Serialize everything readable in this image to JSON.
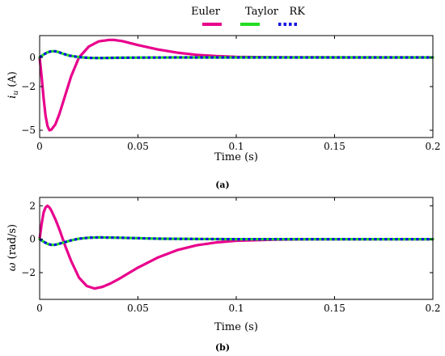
{
  "chart_data": [
    {
      "type": "line",
      "panel": "(a)",
      "xlabel": "Time (s)",
      "ylabel": "i_u (A)",
      "ylabel_main": "i",
      "ylabel_sub": "u",
      "ylabel_unit": " (A)",
      "xlim": [
        0,
        0.2
      ],
      "ylim": [
        -5.5,
        1.5
      ],
      "xticks": [
        0,
        0.05,
        0.1,
        0.15,
        0.2
      ],
      "xtick_labels": [
        "0",
        "0.05",
        "0.1",
        "0.15",
        "0.2"
      ],
      "yticks": [
        0,
        -2,
        -5
      ],
      "ytick_labels": [
        "0",
        "−2",
        "−5"
      ],
      "series": [
        {
          "name": "Euler",
          "color": "#e8008c",
          "style": "solid",
          "x": [
            0,
            0.001,
            0.002,
            0.003,
            0.004,
            0.005,
            0.006,
            0.008,
            0.01,
            0.013,
            0.016,
            0.02,
            0.025,
            0.03,
            0.035,
            0.038,
            0.042,
            0.05,
            0.06,
            0.07,
            0.08,
            0.09,
            0.1,
            0.12,
            0.15,
            0.2
          ],
          "y": [
            0,
            -1.3,
            -2.8,
            -4.0,
            -4.7,
            -5.0,
            -4.95,
            -4.6,
            -3.9,
            -2.6,
            -1.3,
            0.0,
            0.75,
            1.1,
            1.2,
            1.2,
            1.12,
            0.85,
            0.55,
            0.33,
            0.18,
            0.09,
            0.04,
            0.01,
            0.0,
            0.0
          ]
        },
        {
          "name": "Taylor",
          "color": "#22dd22",
          "style": "solid",
          "x": [
            0,
            0.002,
            0.004,
            0.006,
            0.008,
            0.01,
            0.012,
            0.015,
            0.02,
            0.025,
            0.03,
            0.04,
            0.05,
            0.07,
            0.1,
            0.15,
            0.2
          ],
          "y": [
            0,
            0.2,
            0.35,
            0.43,
            0.42,
            0.35,
            0.25,
            0.13,
            0.02,
            -0.03,
            -0.04,
            -0.02,
            -0.01,
            0.0,
            0.0,
            0.0,
            0.0
          ]
        },
        {
          "name": "RK",
          "color": "#1414e0",
          "style": "dotted",
          "x": [
            0,
            0.002,
            0.004,
            0.006,
            0.008,
            0.01,
            0.012,
            0.015,
            0.02,
            0.025,
            0.03,
            0.04,
            0.05,
            0.07,
            0.1,
            0.15,
            0.2
          ],
          "y": [
            0,
            0.2,
            0.35,
            0.43,
            0.42,
            0.35,
            0.25,
            0.13,
            0.02,
            -0.03,
            -0.04,
            -0.02,
            -0.01,
            0.0,
            0.0,
            0.0,
            0.0
          ]
        }
      ]
    },
    {
      "type": "line",
      "panel": "(b)",
      "xlabel": "Time (s)",
      "ylabel": "ω (rad/s)",
      "ylabel_main": "ω",
      "ylabel_sub": "",
      "ylabel_unit": " (rad/s)",
      "xlim": [
        0,
        0.2
      ],
      "ylim": [
        -3.6,
        2.5
      ],
      "xticks": [
        0,
        0.05,
        0.1,
        0.15,
        0.2
      ],
      "xtick_labels": [
        "0",
        "0.05",
        "0.1",
        "0.15",
        "0.2"
      ],
      "yticks": [
        2,
        0,
        -2
      ],
      "ytick_labels": [
        "2",
        "0",
        "−2"
      ],
      "series": [
        {
          "name": "Euler",
          "color": "#e8008c",
          "style": "solid",
          "x": [
            0,
            0.001,
            0.002,
            0.003,
            0.004,
            0.005,
            0.006,
            0.008,
            0.01,
            0.013,
            0.016,
            0.02,
            0.024,
            0.028,
            0.032,
            0.036,
            0.04,
            0.045,
            0.05,
            0.06,
            0.07,
            0.08,
            0.09,
            0.1,
            0.12,
            0.15,
            0.2
          ],
          "y": [
            0,
            0.9,
            1.6,
            1.9,
            2.0,
            1.9,
            1.7,
            1.2,
            0.6,
            -0.4,
            -1.3,
            -2.3,
            -2.8,
            -2.95,
            -2.85,
            -2.65,
            -2.4,
            -2.05,
            -1.7,
            -1.1,
            -0.65,
            -0.36,
            -0.19,
            -0.09,
            -0.02,
            0.0,
            0.0
          ]
        },
        {
          "name": "Taylor",
          "color": "#22dd22",
          "style": "solid",
          "x": [
            0,
            0.002,
            0.004,
            0.006,
            0.008,
            0.01,
            0.013,
            0.016,
            0.02,
            0.025,
            0.03,
            0.04,
            0.05,
            0.06,
            0.08,
            0.1,
            0.15,
            0.2
          ],
          "y": [
            0,
            -0.15,
            -0.28,
            -0.34,
            -0.33,
            -0.27,
            -0.17,
            -0.07,
            0.03,
            0.09,
            0.11,
            0.09,
            0.06,
            0.03,
            0.01,
            0.0,
            0.0,
            0.0
          ]
        },
        {
          "name": "RK",
          "color": "#1414e0",
          "style": "dotted",
          "x": [
            0,
            0.002,
            0.004,
            0.006,
            0.008,
            0.01,
            0.013,
            0.016,
            0.02,
            0.025,
            0.03,
            0.04,
            0.05,
            0.06,
            0.08,
            0.1,
            0.15,
            0.2
          ],
          "y": [
            0,
            -0.15,
            -0.28,
            -0.34,
            -0.33,
            -0.27,
            -0.17,
            -0.07,
            0.03,
            0.09,
            0.11,
            0.09,
            0.06,
            0.03,
            0.01,
            0.0,
            0.0,
            0.0
          ]
        }
      ]
    }
  ],
  "legend": {
    "placement": "top-center",
    "entries": [
      {
        "name": "Euler",
        "color": "#e8008c",
        "style": "solid"
      },
      {
        "name": "Taylor",
        "color": "#22dd22",
        "style": "solid"
      },
      {
        "name": "RK",
        "color": "#1414e0",
        "style": "dotted"
      }
    ]
  }
}
